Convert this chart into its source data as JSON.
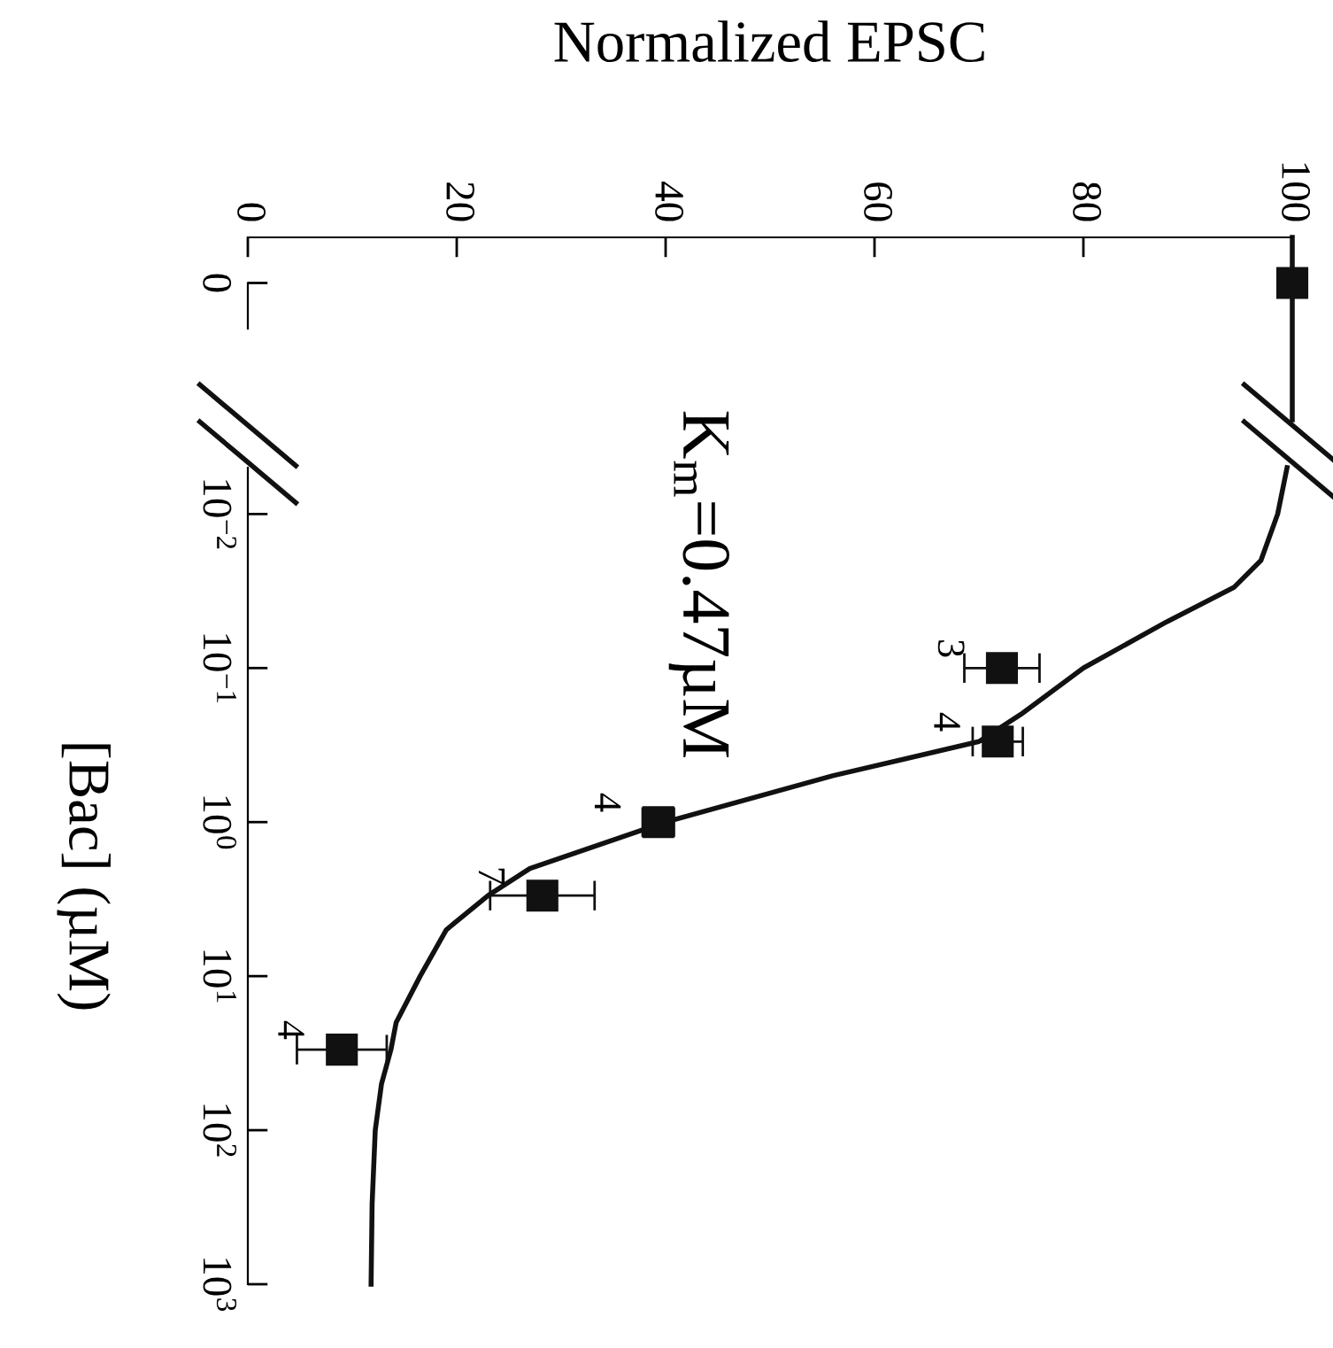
{
  "chart_data": [
    {
      "type": "scatter",
      "orientation": "horizontal",
      "xlabel": "Normalized EPSC",
      "categories": [
        "0"
      ],
      "xlim": [
        0,
        100
      ],
      "xticks": [
        0,
        20,
        40,
        60,
        80,
        100
      ],
      "ref_lines": [
        {
          "axis": "x",
          "value": 100,
          "color": "#111111"
        }
      ],
      "series": [
        {
          "type": "scatter",
          "color": "#111111",
          "marker": "square",
          "values": [
            100
          ]
        }
      ]
    },
    {
      "type": "scatter",
      "ylabel": "[Bac] (µM)",
      "log": "y",
      "xlim": [
        0,
        100
      ],
      "ylim": [
        1000,
        0.005
      ],
      "yticks": [
        {
          "value": 0.01,
          "label": "10$^{−2}$"
        },
        {
          "value": 0.1,
          "label": "10$^{−1}$"
        },
        {
          "value": 1,
          "label": "10$^{0}$"
        },
        {
          "value": 10,
          "label": "10$^{1}$"
        },
        {
          "value": 100,
          "label": "10$^{2}$"
        },
        {
          "value": 1000,
          "label": "10$^{3}$"
        }
      ],
      "tick_labels": "y",
      "annotations": [
        "K$_{m}$=0.47µM",
        {
          "text": "3",
          "x": 72.2,
          "y": 0.1
        },
        {
          "text": "4",
          "x": 71.8,
          "y": 0.3
        },
        {
          "text": "4",
          "x": 39.3,
          "y": 1
        },
        {
          "text": "7",
          "x": 28.2,
          "y": 3
        },
        {
          "text": "4",
          "x": 9.0,
          "y": 30
        }
      ],
      "series": [
        {
          "type": "line",
          "color": "#111111",
          "x": [
            99.5,
            98.6,
            97,
            94.4,
            88,
            80,
            74,
            70,
            56,
            40,
            27,
            23,
            19,
            16.5,
            14.2,
            13.7,
            12.8,
            12.2,
            11.9,
            11.8
          ],
          "values": [
            0.005,
            0.01,
            0.02,
            0.03,
            0.05,
            0.1,
            0.2,
            0.3,
            0.5,
            1,
            2,
            3,
            5,
            10,
            20,
            30,
            50,
            100,
            300,
            1000
          ]
        },
        {
          "type": "scatter",
          "color": "#111111",
          "marker": "square",
          "x": [
            72.2,
            71.8,
            39.3,
            28.2,
            9.0
          ],
          "values": [
            0.1,
            0.3,
            1,
            3,
            30
          ],
          "xerrors": [
            3.6,
            2.4,
            1.5,
            5,
            4.3
          ]
        }
      ]
    }
  ]
}
